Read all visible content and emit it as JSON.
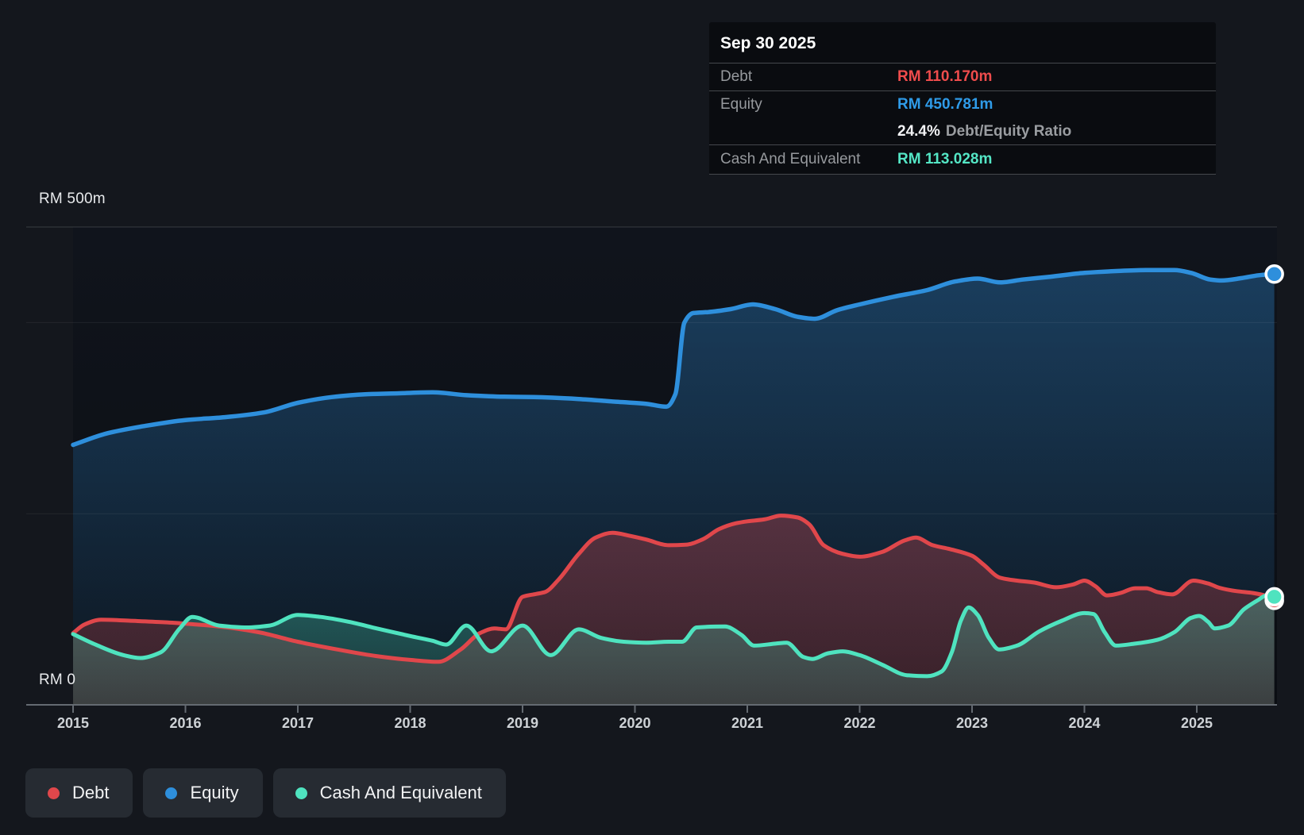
{
  "colors": {
    "debt": "#e0474b",
    "equity": "#2e8fdc",
    "cash": "#4fe3bf",
    "debt_text": "#ef4c4c",
    "equity_text": "#2f9be8",
    "cash_text": "#54e6c5",
    "grid_major": "rgba(255,255,255,0.16)",
    "grid_minor": "rgba(255,255,255,0.07)",
    "axis": "#646a71",
    "plot_bg_top": "#10141c",
    "plot_bg_bottom": "#0b0e13"
  },
  "tooltip": {
    "date": "Sep 30 2025",
    "debt": {
      "label": "Debt",
      "value": "RM 110.170m"
    },
    "equity": {
      "label": "Equity",
      "value": "RM 450.781m"
    },
    "ratio": {
      "value": "24.4%",
      "label": "Debt/Equity Ratio"
    },
    "cash": {
      "label": "Cash And Equivalent",
      "value": "RM 113.028m"
    }
  },
  "axis": {
    "y_top_label": "RM 500m",
    "y_zero_label": "RM 0",
    "years": [
      "2015",
      "2016",
      "2017",
      "2018",
      "2019",
      "2020",
      "2021",
      "2022",
      "2023",
      "2024",
      "2025"
    ]
  },
  "legend": [
    {
      "key": "debt",
      "label": "Debt"
    },
    {
      "key": "equity",
      "label": "Equity"
    },
    {
      "key": "cash",
      "label": "Cash And Equivalent"
    }
  ],
  "chart_data": {
    "type": "area",
    "x_unit": "year",
    "x_domain": [
      2015,
      2025.69
    ],
    "y_unit": "RM millions",
    "ylim": [
      0,
      500
    ],
    "y_tick_labels": [
      "RM 500m",
      "RM 0"
    ],
    "gridlines_rm": [
      {
        "value": 500,
        "strength": "major"
      },
      {
        "value": 400,
        "strength": "minor"
      },
      {
        "value": 200,
        "strength": "minor"
      },
      {
        "value": 0,
        "strength": "axis"
      }
    ],
    "end_date_label": "Sep 30 2025",
    "series": [
      {
        "name": "Equity",
        "key": "equity",
        "end_value": 450.781,
        "points": [
          [
            2015.0,
            272
          ],
          [
            2015.3,
            284
          ],
          [
            2015.6,
            291
          ],
          [
            2016.0,
            298
          ],
          [
            2016.35,
            301
          ],
          [
            2016.7,
            306
          ],
          [
            2017.0,
            316
          ],
          [
            2017.3,
            322
          ],
          [
            2017.6,
            325
          ],
          [
            2017.9,
            326
          ],
          [
            2018.2,
            327
          ],
          [
            2018.5,
            324
          ],
          [
            2018.8,
            322.5
          ],
          [
            2019.1,
            322
          ],
          [
            2019.5,
            320
          ],
          [
            2019.85,
            317
          ],
          [
            2020.1,
            315
          ],
          [
            2020.28,
            312
          ],
          [
            2020.36,
            325
          ],
          [
            2020.44,
            400
          ],
          [
            2020.52,
            410
          ],
          [
            2020.65,
            411
          ],
          [
            2020.85,
            414
          ],
          [
            2021.05,
            419
          ],
          [
            2021.25,
            414
          ],
          [
            2021.45,
            406
          ],
          [
            2021.6,
            404
          ],
          [
            2021.8,
            413
          ],
          [
            2022.0,
            419
          ],
          [
            2022.3,
            427
          ],
          [
            2022.6,
            434
          ],
          [
            2022.85,
            443
          ],
          [
            2023.05,
            446
          ],
          [
            2023.25,
            442
          ],
          [
            2023.45,
            445
          ],
          [
            2023.7,
            448
          ],
          [
            2024.0,
            452
          ],
          [
            2024.3,
            454
          ],
          [
            2024.55,
            455
          ],
          [
            2024.8,
            455
          ],
          [
            2024.95,
            452
          ],
          [
            2025.12,
            445
          ],
          [
            2025.22,
            444
          ],
          [
            2025.4,
            446.5
          ],
          [
            2025.55,
            449.5
          ],
          [
            2025.69,
            450.781
          ]
        ]
      },
      {
        "name": "Debt",
        "key": "debt",
        "end_value": 110.17,
        "points": [
          [
            2015.0,
            75
          ],
          [
            2015.1,
            84
          ],
          [
            2015.25,
            89
          ],
          [
            2015.5,
            88
          ],
          [
            2015.8,
            86.5
          ],
          [
            2016.0,
            85
          ],
          [
            2016.3,
            82
          ],
          [
            2016.65,
            76
          ],
          [
            2017.0,
            66
          ],
          [
            2017.35,
            58
          ],
          [
            2017.7,
            51
          ],
          [
            2018.0,
            47
          ],
          [
            2018.25,
            45
          ],
          [
            2018.45,
            58
          ],
          [
            2018.62,
            75
          ],
          [
            2018.75,
            80
          ],
          [
            2018.85,
            79
          ],
          [
            2019.0,
            113
          ],
          [
            2019.12,
            116
          ],
          [
            2019.2,
            118
          ],
          [
            2019.32,
            131
          ],
          [
            2019.5,
            158
          ],
          [
            2019.65,
            175
          ],
          [
            2019.8,
            180
          ],
          [
            2019.95,
            177
          ],
          [
            2020.1,
            173
          ],
          [
            2020.3,
            167
          ],
          [
            2020.45,
            167.5
          ],
          [
            2020.6,
            173
          ],
          [
            2020.75,
            184
          ],
          [
            2020.9,
            190
          ],
          [
            2021.0,
            192
          ],
          [
            2021.15,
            194
          ],
          [
            2021.3,
            198
          ],
          [
            2021.45,
            196
          ],
          [
            2021.55,
            189
          ],
          [
            2021.68,
            167
          ],
          [
            2021.85,
            158
          ],
          [
            2022.0,
            155
          ],
          [
            2022.2,
            160
          ],
          [
            2022.4,
            172
          ],
          [
            2022.5,
            175
          ],
          [
            2022.65,
            167
          ],
          [
            2022.8,
            163
          ],
          [
            2023.0,
            156
          ],
          [
            2023.1,
            147
          ],
          [
            2023.25,
            133
          ],
          [
            2023.4,
            130
          ],
          [
            2023.55,
            128
          ],
          [
            2023.75,
            123
          ],
          [
            2023.9,
            126
          ],
          [
            2024.0,
            130
          ],
          [
            2024.1,
            124
          ],
          [
            2024.2,
            114.5
          ],
          [
            2024.32,
            117
          ],
          [
            2024.45,
            122
          ],
          [
            2024.55,
            122
          ],
          [
            2024.65,
            118
          ],
          [
            2024.78,
            115.5
          ],
          [
            2024.97,
            130
          ],
          [
            2025.1,
            127
          ],
          [
            2025.2,
            122.5
          ],
          [
            2025.35,
            119
          ],
          [
            2025.5,
            117
          ],
          [
            2025.62,
            114
          ],
          [
            2025.69,
            110.17
          ]
        ]
      },
      {
        "name": "Cash And Equivalent",
        "key": "cash",
        "end_value": 113.028,
        "points": [
          [
            2015.0,
            74
          ],
          [
            2015.2,
            63
          ],
          [
            2015.45,
            52
          ],
          [
            2015.6,
            49
          ],
          [
            2015.78,
            55
          ],
          [
            2015.95,
            80
          ],
          [
            2016.06,
            92
          ],
          [
            2016.3,
            83
          ],
          [
            2016.55,
            81
          ],
          [
            2016.75,
            83
          ],
          [
            2017.0,
            94
          ],
          [
            2017.2,
            92
          ],
          [
            2017.45,
            87
          ],
          [
            2017.7,
            80
          ],
          [
            2018.0,
            72
          ],
          [
            2018.2,
            67
          ],
          [
            2018.32,
            63
          ],
          [
            2018.5,
            83
          ],
          [
            2018.72,
            56
          ],
          [
            2019.0,
            83
          ],
          [
            2019.25,
            52
          ],
          [
            2019.5,
            79
          ],
          [
            2019.7,
            70
          ],
          [
            2019.9,
            66
          ],
          [
            2020.1,
            65
          ],
          [
            2020.3,
            66
          ],
          [
            2020.42,
            66
          ],
          [
            2020.55,
            81
          ],
          [
            2020.8,
            82
          ],
          [
            2020.95,
            73
          ],
          [
            2021.06,
            62
          ],
          [
            2021.25,
            64
          ],
          [
            2021.35,
            65
          ],
          [
            2021.5,
            50
          ],
          [
            2021.58,
            48
          ],
          [
            2021.72,
            54
          ],
          [
            2021.85,
            56
          ],
          [
            2022.0,
            52
          ],
          [
            2022.2,
            42
          ],
          [
            2022.42,
            31
          ],
          [
            2022.6,
            30
          ],
          [
            2022.73,
            35
          ],
          [
            2022.82,
            55
          ],
          [
            2022.9,
            88
          ],
          [
            2022.97,
            102
          ],
          [
            2023.05,
            94
          ],
          [
            2023.15,
            70
          ],
          [
            2023.24,
            58
          ],
          [
            2023.4,
            62
          ],
          [
            2023.6,
            77
          ],
          [
            2023.8,
            88
          ],
          [
            2024.0,
            96
          ],
          [
            2024.08,
            95
          ],
          [
            2024.18,
            76
          ],
          [
            2024.28,
            62
          ],
          [
            2024.45,
            64
          ],
          [
            2024.65,
            68
          ],
          [
            2024.8,
            76
          ],
          [
            2024.95,
            91
          ],
          [
            2025.02,
            93
          ],
          [
            2025.1,
            87
          ],
          [
            2025.16,
            80
          ],
          [
            2025.28,
            83
          ],
          [
            2025.42,
            100
          ],
          [
            2025.55,
            110
          ],
          [
            2025.62,
            114.5
          ],
          [
            2025.69,
            113.028
          ]
        ]
      }
    ]
  }
}
